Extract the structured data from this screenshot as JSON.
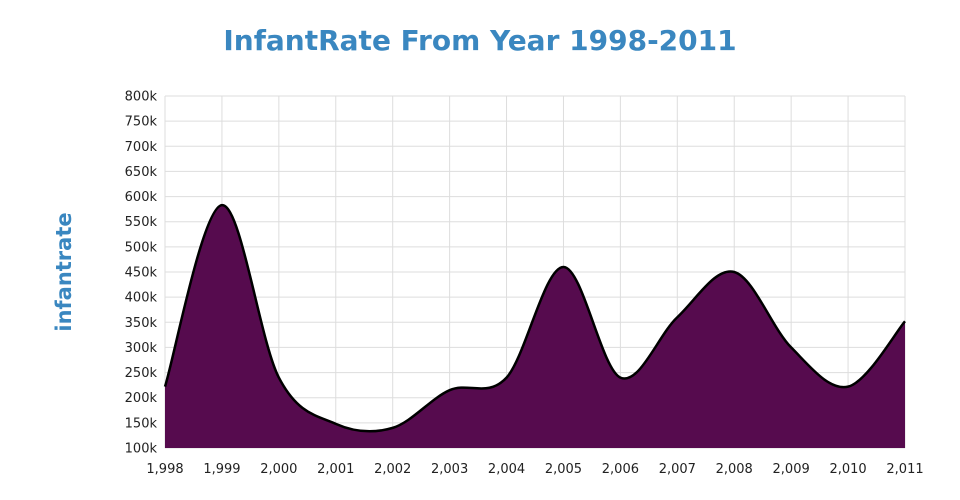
{
  "chart_data": {
    "type": "area",
    "title": "InfantRate From Year 1998-2011",
    "xlabel": "",
    "ylabel": "infantrate",
    "x": [
      1998,
      1999,
      2000,
      2001,
      2002,
      2003,
      2004,
      2005,
      2006,
      2007,
      2008,
      2009,
      2010,
      2011
    ],
    "x_tick_labels": [
      "1,998",
      "1,999",
      "2,000",
      "2,001",
      "2,002",
      "2,003",
      "2,004",
      "2,005",
      "2,006",
      "2,007",
      "2,008",
      "2,009",
      "2,010",
      "2,011"
    ],
    "y_tick_labels": [
      "100k",
      "150k",
      "200k",
      "250k",
      "300k",
      "350k",
      "400k",
      "450k",
      "500k",
      "550k",
      "600k",
      "650k",
      "700k",
      "750k",
      "800k"
    ],
    "ylim": [
      100000,
      800000
    ],
    "series": [
      {
        "values": [
          222000,
          583000,
          240000,
          148000,
          140000,
          215000,
          240000,
          460000,
          240000,
          360000,
          450000,
          300000,
          222000,
          352000
        ]
      }
    ],
    "grid": true,
    "colors": {
      "fill": "#560b4e",
      "line": "#000000",
      "grid": "#dddddd",
      "title": "#3a87c0"
    }
  }
}
